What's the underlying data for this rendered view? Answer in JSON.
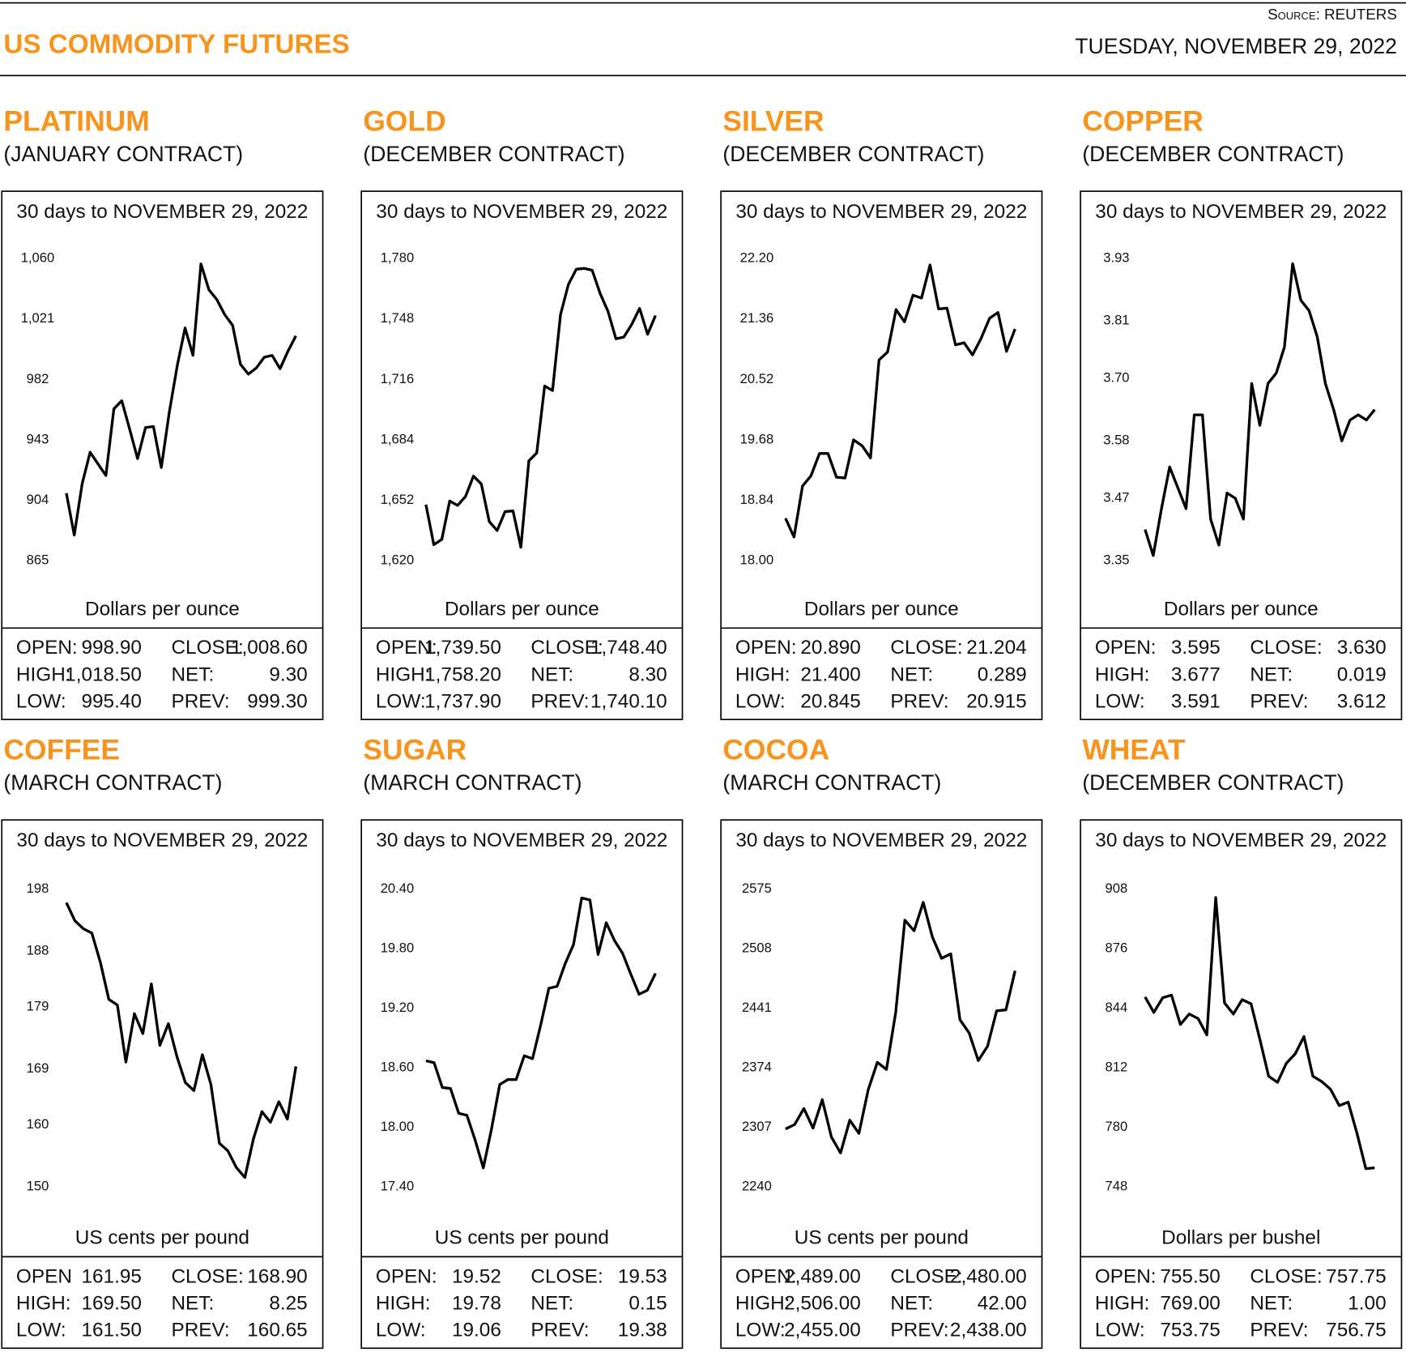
{
  "header": {
    "title": "US COMMODITY FUTURES",
    "source": "Source: REUTERS",
    "date": "TUESDAY, NOVEMBER 29, 2022"
  },
  "chart_data": [
    {
      "type": "line",
      "title": "PLATINUM",
      "subtitle": "(JANUARY CONTRACT)",
      "note": "30 days to NOVEMBER 29, 2022",
      "y_label": "Dollars per ounce",
      "color": "#000000",
      "values": [
        908.6,
        881.6,
        914.9,
        935,
        927.5,
        920,
        963,
        968.2,
        949.9,
        930.9,
        951,
        951.6,
        925.2,
        960.8,
        990.6,
        1015.2,
        997.5,
        1056.5,
        1039.9,
        1033.6,
        1023.8,
        1016.9,
        991.7,
        985.4,
        989.4,
        996.3,
        997.5,
        988.9,
        1000.3,
        1010.1
      ],
      "ylim": [
        865,
        1060
      ],
      "yticks": [
        865,
        904,
        943,
        982,
        {
          "value": 1021,
          "label": "1,021"
        },
        {
          "value": 1060,
          "label": "1,060"
        }
      ],
      "stats": [
        [
          "OPEN:",
          "998.90",
          "CLOSE:",
          "1,008.60"
        ],
        [
          "HIGH:",
          "1,018.50",
          "NET:",
          "9.30"
        ],
        [
          "LOW:",
          "995.40",
          "PREV:",
          "999.30"
        ]
      ]
    },
    {
      "type": "line",
      "title": "GOLD",
      "subtitle": "(DECEMBER CONTRACT)",
      "note": "30 days to NOVEMBER 29, 2022",
      "y_label": "Dollars per ounce",
      "color": "#000000",
      "values": [
        1649.7,
        1628.5,
        1631.3,
        1651.6,
        1649.3,
        1654,
        1664.8,
        1660.6,
        1640.8,
        1636,
        1646,
        1646.4,
        1627.1,
        1672.9,
        1677.1,
        1712.5,
        1710.1,
        1750.3,
        1766.3,
        1774.3,
        1774.8,
        1773.8,
        1761.6,
        1752.1,
        1737.5,
        1738.4,
        1745.1,
        1753.6,
        1739.9,
        1749.8
      ],
      "ylim": [
        1620,
        1780
      ],
      "yticks": [
        {
          "value": 1620,
          "label": "1,620"
        },
        {
          "value": 1652,
          "label": "1,652"
        },
        {
          "value": 1684,
          "label": "1,684"
        },
        {
          "value": 1716,
          "label": "1,716"
        },
        {
          "value": 1748,
          "label": "1,748"
        },
        {
          "value": 1780,
          "label": "1,780"
        }
      ],
      "stats": [
        [
          "OPEN:",
          "1,739.50",
          "CLOSE:",
          "1,748.40"
        ],
        [
          "HIGH:",
          "1,758.20",
          "NET:",
          "8.30"
        ],
        [
          "LOW:",
          "1,737.90",
          "PREV:",
          "1,740.10"
        ]
      ]
    },
    {
      "type": "line",
      "title": "SILVER",
      "subtitle": "(DECEMBER CONTRACT)",
      "note": "30 days to NOVEMBER 29, 2022",
      "y_label": "Dollars per ounce",
      "color": "#000000",
      "values": [
        18.59,
        18.33,
        19.04,
        19.18,
        19.49,
        19.49,
        19.16,
        19.15,
        19.68,
        19.6,
        19.43,
        20.79,
        20.9,
        21.49,
        21.32,
        21.69,
        21.65,
        22.11,
        21.5,
        21.51,
        21.0,
        21.03,
        20.86,
        21.09,
        21.37,
        21.45,
        20.91,
        21.22
      ],
      "ylim": [
        18,
        22.2
      ],
      "yticks": [
        {
          "value": 18,
          "label": "18.00"
        },
        18.84,
        19.68,
        20.52,
        21.36,
        {
          "value": 22.2,
          "label": "22.20"
        }
      ],
      "stats": [
        [
          "OPEN:",
          "20.890",
          "CLOSE:",
          "21.204"
        ],
        [
          "HIGH:",
          "21.400",
          "NET:",
          "0.289"
        ],
        [
          "LOW:",
          "20.845",
          "PREV:",
          "20.915"
        ]
      ]
    },
    {
      "type": "line",
      "title": "COPPER",
      "subtitle": "(DECEMBER CONTRACT)",
      "note": "30 days to NOVEMBER 29, 2022",
      "y_label": "Dollars per ounce",
      "color": "#000000",
      "values": [
        3.41,
        3.36,
        3.45,
        3.53,
        3.49,
        3.45,
        3.63,
        3.63,
        3.43,
        3.38,
        3.48,
        3.47,
        3.43,
        3.69,
        3.61,
        3.69,
        3.71,
        3.76,
        3.92,
        3.85,
        3.83,
        3.78,
        3.69,
        3.64,
        3.58,
        3.62,
        3.63,
        3.62,
        3.64
      ],
      "ylim": [
        3.35,
        3.93
      ],
      "yticks": [
        3.35,
        3.47,
        3.58,
        {
          "value": 3.7,
          "label": "3.70"
        },
        3.81,
        3.93
      ],
      "stats": [
        [
          "OPEN:",
          "3.595",
          "CLOSE:",
          "3.630"
        ],
        [
          "HIGH:",
          "3.677",
          "NET:",
          "0.019"
        ],
        [
          "LOW:",
          "3.591",
          "PREV:",
          "3.612"
        ]
      ]
    },
    {
      "type": "line",
      "title": "COFFEE",
      "subtitle": "(MARCH CONTRACT)",
      "note": "30 days to NOVEMBER 29, 2022",
      "y_label": "US cents per pound",
      "color": "#000000",
      "values": [
        195.8,
        192.9,
        191.6,
        190.9,
        186.2,
        180.2,
        179.3,
        170.1,
        177.9,
        174.7,
        182.7,
        172.8,
        176.3,
        171.0,
        166.8,
        165.5,
        171.3,
        166.5,
        157.0,
        155.8,
        153.1,
        151.5,
        157.7,
        162.1,
        160.4,
        163.7,
        160.9,
        169.4
      ],
      "ylim": [
        150,
        198
      ],
      "yticks": [
        150,
        160,
        169,
        179,
        188,
        198
      ],
      "stats": [
        [
          "OPEN",
          "161.95",
          "CLOSE:",
          "168.90"
        ],
        [
          "HIGH:",
          "169.50",
          "NET:",
          "8.25"
        ],
        [
          "LOW:",
          "161.50",
          "PREV:",
          "160.65"
        ]
      ]
    },
    {
      "type": "line",
      "title": "SUGAR",
      "subtitle": "(MARCH CONTRACT)",
      "note": "30 days to NOVEMBER 29, 2022",
      "y_label": "US cents per pound",
      "color": "#000000",
      "values": [
        18.67,
        18.65,
        18.4,
        18.39,
        18.14,
        18.12,
        17.87,
        17.59,
        17.98,
        18.43,
        18.48,
        18.48,
        18.72,
        18.69,
        19.03,
        19.4,
        19.42,
        19.65,
        19.84,
        20.31,
        20.29,
        19.74,
        20.06,
        19.88,
        19.75,
        19.54,
        19.34,
        19.38,
        19.55
      ],
      "ylim": [
        17.4,
        20.4
      ],
      "yticks": [
        {
          "value": 17.4,
          "label": "17.40"
        },
        {
          "value": 18,
          "label": "18.00"
        },
        {
          "value": 18.6,
          "label": "18.60"
        },
        {
          "value": 19.2,
          "label": "19.20"
        },
        {
          "value": 19.8,
          "label": "19.80"
        },
        {
          "value": 20.4,
          "label": "20.40"
        }
      ],
      "stats": [
        [
          "OPEN:",
          "19.52",
          "CLOSE:",
          "19.53"
        ],
        [
          "HIGH:",
          "19.78",
          "NET:",
          "0.15"
        ],
        [
          "LOW:",
          "19.06",
          "PREV:",
          "19.38"
        ]
      ]
    },
    {
      "type": "line",
      "title": "COCOA",
      "subtitle": "(MARCH CONTRACT)",
      "note": "30 days to NOVEMBER 29, 2022",
      "y_label": "US cents per pound",
      "color": "#000000",
      "values": [
        2305,
        2310,
        2328,
        2306,
        2338,
        2296,
        2278,
        2315,
        2300,
        2349,
        2380,
        2372,
        2436,
        2540,
        2528,
        2560,
        2521,
        2497,
        2502,
        2428,
        2413,
        2382,
        2398,
        2438,
        2439,
        2483
      ],
      "ylim": [
        2240,
        2575
      ],
      "yticks": [
        2240,
        2307,
        2374,
        2441,
        2508,
        2575
      ],
      "stats": [
        [
          "OPEN:",
          "2,489.00",
          "CLOSE:",
          "2,480.00"
        ],
        [
          "HIGH:",
          "2,506.00",
          "NET:",
          "42.00"
        ],
        [
          "LOW:",
          "2,455.00",
          "PREV:",
          "2,438.00"
        ]
      ]
    },
    {
      "type": "line",
      "title": "WHEAT",
      "subtitle": "(DECEMBER CONTRACT)",
      "note": "30 days to NOVEMBER 29, 2022",
      "y_label": "Dollars per bushel",
      "color": "#000000",
      "values": [
        850,
        841.7,
        849.6,
        851,
        835.2,
        840.8,
        838.4,
        829.6,
        903.4,
        846.8,
        840.8,
        848.6,
        846.3,
        827.3,
        807.4,
        804.1,
        814.3,
        819.4,
        828.7,
        807.4,
        804.6,
        800.4,
        791.6,
        793.5,
        776.8,
        757.7,
        758.2
      ],
      "ylim": [
        748,
        908
      ],
      "yticks": [
        748,
        780,
        812,
        844,
        876,
        908
      ],
      "stats": [
        [
          "OPEN:",
          "755.50",
          "CLOSE:",
          "757.75"
        ],
        [
          "HIGH:",
          "769.00",
          "NET:",
          "1.00"
        ],
        [
          "LOW:",
          "753.75",
          "PREV:",
          "756.75"
        ]
      ]
    }
  ]
}
